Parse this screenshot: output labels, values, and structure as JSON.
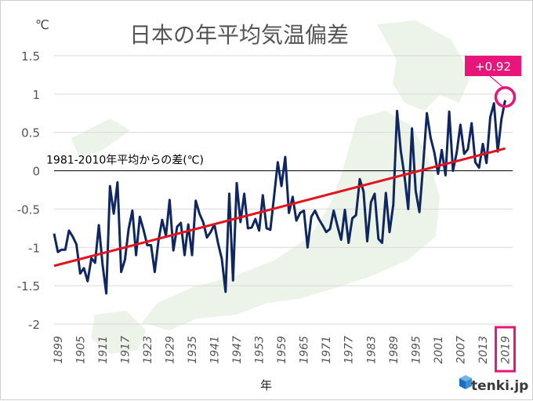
{
  "chart_data": {
    "type": "line",
    "title": "日本の年平均気温偏差",
    "unit_label": "℃",
    "xlabel": "年",
    "baseline_label": "1981-2010年平均からの差(℃)",
    "callout": {
      "text": "+0.92",
      "year": 2019,
      "value": 0.92
    },
    "ylim": [
      -2,
      1.5
    ],
    "yticks": [
      1.5,
      1,
      0.5,
      0,
      -0.5,
      -1,
      -1.5,
      -2
    ],
    "xlim": [
      1898,
      2021
    ],
    "xticks": [
      1899,
      1905,
      1911,
      1917,
      1923,
      1929,
      1935,
      1941,
      1947,
      1953,
      1959,
      1965,
      1971,
      1977,
      1983,
      1989,
      1995,
      2001,
      2007,
      2013,
      2019
    ],
    "highlight_tick": 2019,
    "grid": true,
    "series": [
      {
        "kind": "observed",
        "color": "#0f2660",
        "x": [
          1898,
          1899,
          1900,
          1901,
          1902,
          1903,
          1904,
          1905,
          1906,
          1907,
          1908,
          1909,
          1910,
          1911,
          1912,
          1913,
          1914,
          1915,
          1916,
          1917,
          1918,
          1919,
          1920,
          1921,
          1922,
          1923,
          1924,
          1925,
          1926,
          1927,
          1928,
          1929,
          1930,
          1931,
          1932,
          1933,
          1934,
          1935,
          1936,
          1937,
          1938,
          1939,
          1940,
          1941,
          1942,
          1943,
          1944,
          1945,
          1946,
          1947,
          1948,
          1949,
          1950,
          1951,
          1952,
          1953,
          1954,
          1955,
          1956,
          1957,
          1958,
          1959,
          1960,
          1961,
          1962,
          1963,
          1964,
          1965,
          1966,
          1967,
          1968,
          1969,
          1970,
          1971,
          1972,
          1973,
          1974,
          1975,
          1976,
          1977,
          1978,
          1979,
          1980,
          1981,
          1982,
          1983,
          1984,
          1985,
          1986,
          1987,
          1988,
          1989,
          1990,
          1991,
          1992,
          1993,
          1994,
          1995,
          1996,
          1997,
          1998,
          1999,
          2000,
          2001,
          2002,
          2003,
          2004,
          2005,
          2006,
          2007,
          2008,
          2009,
          2010,
          2011,
          2012,
          2013,
          2014,
          2015,
          2016,
          2017,
          2018,
          2019
        ],
        "values": [
          -0.82,
          -1.06,
          -1.03,
          -1.03,
          -0.78,
          -0.86,
          -0.96,
          -1.34,
          -1.27,
          -1.44,
          -1.14,
          -1.2,
          -0.71,
          -1.22,
          -1.6,
          -0.2,
          -0.56,
          -0.15,
          -1.32,
          -1.16,
          -0.76,
          -0.52,
          -1.1,
          -0.6,
          -0.77,
          -0.97,
          -0.97,
          -1.32,
          -0.91,
          -0.64,
          -0.85,
          -0.38,
          -1.04,
          -0.73,
          -0.68,
          -1.1,
          -0.7,
          -1.1,
          -0.39,
          -0.56,
          -0.67,
          -0.87,
          -0.8,
          -0.7,
          -0.95,
          -1.15,
          -1.58,
          -0.3,
          -1.43,
          -0.16,
          -0.67,
          -0.3,
          -0.75,
          -0.74,
          -0.63,
          -0.78,
          -0.32,
          -0.75,
          -0.77,
          -0.34,
          0.11,
          -0.2,
          0.18,
          -0.55,
          -0.34,
          -0.65,
          -0.55,
          -0.52,
          -1.0,
          -0.6,
          -0.52,
          -0.63,
          -0.71,
          -0.8,
          -0.76,
          -0.52,
          -0.72,
          -0.9,
          -0.51,
          -0.94,
          -0.62,
          -0.58,
          -0.11,
          -0.27,
          -0.92,
          -0.41,
          -0.3,
          -0.89,
          -0.94,
          -0.29,
          -0.8,
          -0.44,
          0.78,
          0.26,
          -0.07,
          -0.5,
          0.55,
          -0.26,
          -0.54,
          0.08,
          0.75,
          0.43,
          0.24,
          -0.04,
          0.27,
          -0.06,
          0.77,
          0.0,
          0.24,
          0.6,
          0.22,
          0.28,
          0.62,
          0.11,
          0.04,
          0.35,
          0.1,
          0.7,
          0.88,
          0.25,
          0.67,
          0.92
        ]
      },
      {
        "kind": "trend",
        "color": "#e3141f",
        "x": [
          1898,
          2019
        ],
        "values": [
          -1.24,
          0.29
        ]
      }
    ]
  },
  "watermark": "japan-map",
  "logo": {
    "icon": "tenki-cube-icon",
    "text": "tenki.jp"
  }
}
